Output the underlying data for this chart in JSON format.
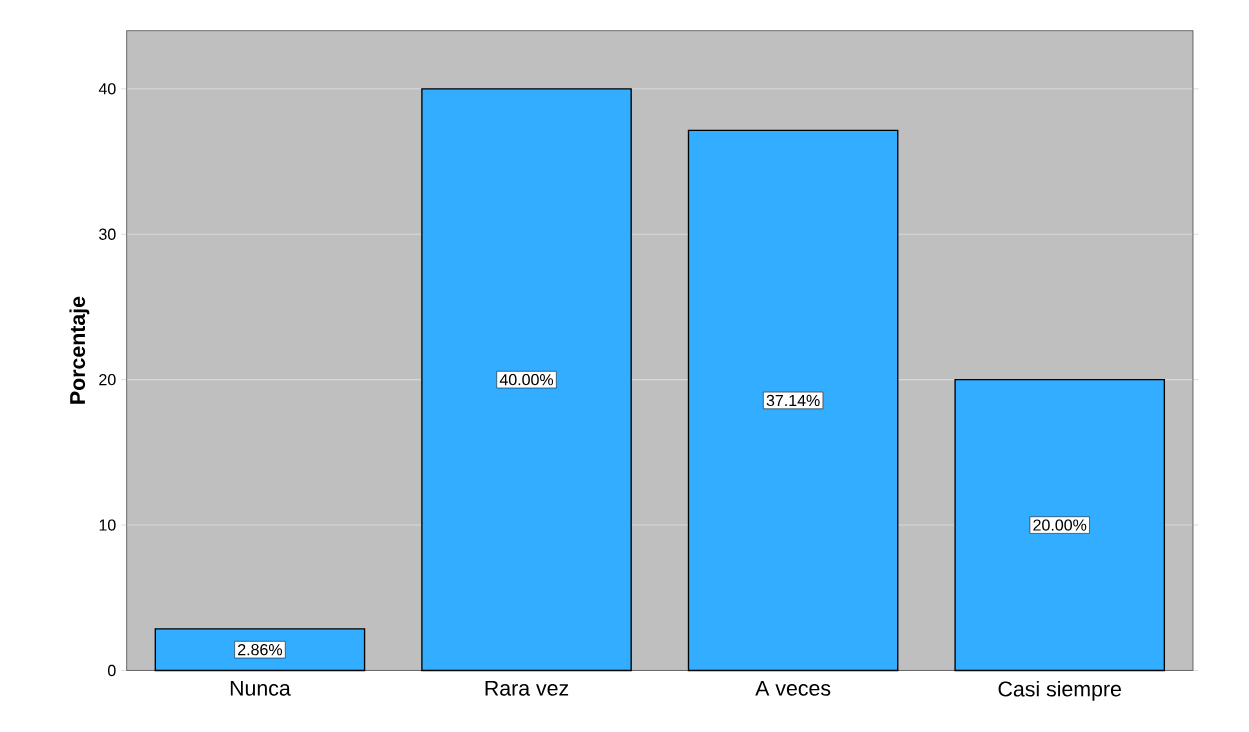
{
  "chart_data": {
    "type": "bar",
    "ylabel": "Porcentaje",
    "categories": [
      "Nunca",
      "Rara vez",
      "A veces",
      "Casi siempre"
    ],
    "values": [
      2.86,
      40.0,
      37.14,
      20.0
    ],
    "value_labels": [
      "2.86%",
      "40.00%",
      "37.14%",
      "20.00%"
    ],
    "color": "#33adff",
    "ylim": [
      0,
      44
    ],
    "yticks": [
      0,
      10,
      20,
      30,
      40
    ],
    "grid": "y"
  }
}
